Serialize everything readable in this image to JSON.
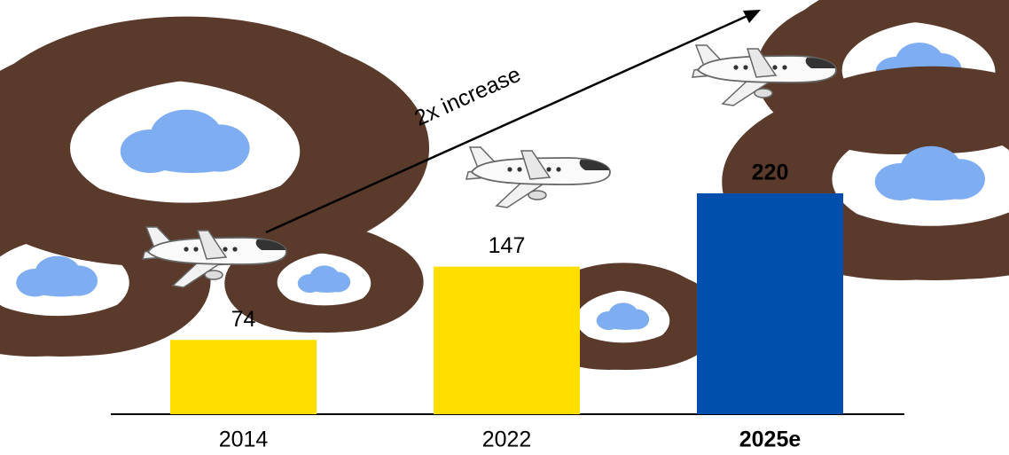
{
  "chart_data": {
    "type": "bar",
    "categories": [
      "2014",
      "2022",
      "2025e"
    ],
    "values": [
      74,
      147,
      220
    ],
    "colors": [
      "#ffde00",
      "#ffde00",
      "#004fad"
    ],
    "bold": [
      false,
      false,
      true
    ],
    "annotation": "2x increase"
  }
}
